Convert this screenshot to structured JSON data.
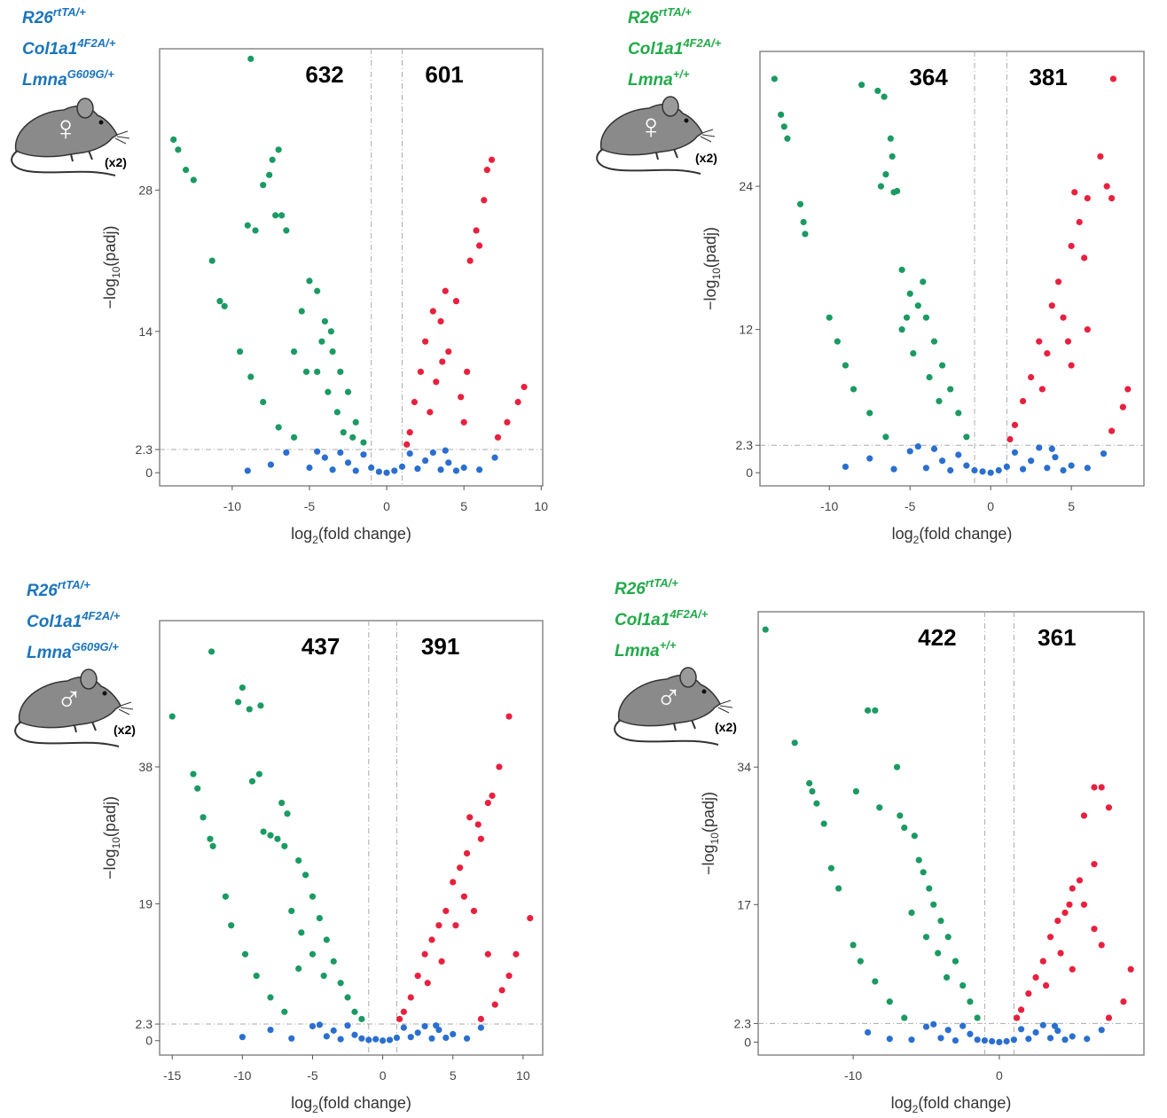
{
  "chart_data": [
    {
      "type": "scatter",
      "genotype": [
        {
          "gene": "R26",
          "allele": "rtTA/+"
        },
        {
          "gene": "Col1a1",
          "allele": "4F2A/+"
        },
        {
          "gene": "Lmna",
          "allele": "G609G/+"
        }
      ],
      "genotype_color": "#1c75bc",
      "sex": "♀",
      "replicates": "(x2)",
      "down_count": 632,
      "up_count": 601,
      "x_label": [
        "log",
        "2",
        "(fold change)"
      ],
      "y_label": [
        "−log",
        "10",
        "(padj)"
      ],
      "xlim": [
        -14.7,
        10.1
      ],
      "ylim": [
        -1.3,
        42
      ],
      "xticks": [
        -10,
        -5,
        0,
        5,
        10
      ],
      "yticks": [
        0,
        2.3,
        14,
        28
      ],
      "fc_threshold": [
        -1,
        1
      ],
      "padj_threshold": 2.3,
      "grid": false,
      "series": [
        {
          "color": "#1b9a62",
          "x": [
            -8.8,
            -13.8,
            -13.5,
            -13,
            -12.5,
            -7,
            -7.4,
            -7.6,
            -8,
            -6.8,
            -7.2,
            -8.5,
            -9,
            -6.5,
            -11.3,
            -10.8,
            -10.5,
            -9.5,
            -8.8,
            -8,
            -7,
            -6,
            -5,
            -4.5,
            -5.5,
            -4,
            -3.5,
            -3,
            -2.5,
            -2,
            -1.5,
            -4.5,
            -3.8,
            -3.2,
            -2.8,
            -6,
            -5.2,
            -4.2,
            -3.6,
            -2.2
          ],
          "values": [
            41,
            33,
            32,
            30,
            29,
            32,
            31,
            29.5,
            28.5,
            25.5,
            25.5,
            24,
            24.5,
            24,
            21,
            17,
            16.5,
            12,
            9.5,
            7,
            4.5,
            3.5,
            19,
            18,
            16,
            15,
            12,
            10,
            8,
            5,
            3,
            10,
            8,
            6,
            4,
            12,
            10,
            13,
            14,
            3.5
          ]
        },
        {
          "color": "#e8203e",
          "x": [
            6.8,
            6.5,
            6.3,
            5.8,
            6,
            5.4,
            3.8,
            4.5,
            3,
            3.5,
            2.5,
            4,
            2.2,
            5.2,
            3.2,
            1.8,
            4.8,
            2.8,
            1.5,
            1.3,
            5,
            8.9,
            8.5,
            7.8,
            7.2,
            3.6
          ],
          "values": [
            31,
            30,
            27,
            24,
            22.5,
            21,
            18,
            17,
            16,
            15,
            13,
            12,
            10,
            10,
            9,
            7,
            7.5,
            6,
            4,
            2.8,
            5,
            8.5,
            7,
            5,
            3.5,
            11
          ]
        },
        {
          "color": "#2a6fcf",
          "x": [
            -6.5,
            -5,
            -4,
            -3.5,
            -3,
            -2.5,
            -2,
            -1.5,
            -1,
            -0.5,
            0,
            0.5,
            1,
            1.5,
            2,
            2.5,
            3,
            3.5,
            4,
            4.5,
            5,
            6,
            7,
            -7.5,
            -9,
            -4.5,
            3.8
          ],
          "values": [
            2,
            0.5,
            1.5,
            0.3,
            2,
            1,
            0.2,
            1.8,
            0.5,
            0.1,
            0,
            0.2,
            0.6,
            1.9,
            0.4,
            1.2,
            2,
            0.3,
            1,
            0.2,
            0.5,
            0.3,
            1.5,
            0.8,
            0.2,
            2.1,
            2.2
          ]
        }
      ]
    },
    {
      "type": "scatter",
      "genotype": [
        {
          "gene": "R26",
          "allele": "rtTA/+"
        },
        {
          "gene": "Col1a1",
          "allele": "4F2A/+"
        },
        {
          "gene": "Lmna",
          "allele": "+/+"
        }
      ],
      "genotype_color": "#22aa4a",
      "sex": "♀",
      "replicates": "(x2)",
      "down_count": 364,
      "up_count": 381,
      "x_label": [
        "log",
        "2",
        "(fold change)"
      ],
      "y_label": [
        "−log",
        "10",
        "(padj)"
      ],
      "xlim": [
        -14.3,
        9.5
      ],
      "ylim": [
        -1.1,
        35.3
      ],
      "xticks": [
        -10,
        -5,
        0,
        5
      ],
      "yticks": [
        0,
        2.3,
        12,
        24
      ],
      "fc_threshold": [
        -1,
        1
      ],
      "padj_threshold": 2.3,
      "grid": false,
      "series": [
        {
          "color": "#1b9a62",
          "x": [
            -13.4,
            -13,
            -12.8,
            -12.6,
            -11.8,
            -11.6,
            -11.5,
            -8,
            -7,
            -6.6,
            -6.2,
            -6.1,
            -6.5,
            -6.8,
            -6,
            -5.8,
            -5.5,
            -5,
            -4.5,
            -4,
            -3.5,
            -3,
            -2.5,
            -2,
            -1.5,
            -10,
            -9.5,
            -9,
            -8.5,
            -7.5,
            -6.5,
            -5.5,
            -4.8,
            -3.8,
            -3.2,
            -4.2,
            -5.2
          ],
          "values": [
            33,
            30,
            29,
            28,
            22.5,
            21,
            20,
            32.5,
            32,
            31.5,
            28,
            26.5,
            25,
            24,
            23.5,
            23.6,
            17,
            15,
            14,
            13,
            11,
            9,
            7,
            5,
            3,
            13,
            11,
            9,
            7,
            5,
            3,
            12,
            10,
            8,
            6,
            16,
            13
          ]
        },
        {
          "color": "#e8203e",
          "x": [
            7.6,
            6.8,
            7.2,
            7.5,
            6,
            5.2,
            5.5,
            5,
            5.8,
            4.2,
            3.8,
            4.5,
            3,
            3.5,
            2.5,
            2,
            1.5,
            1.2,
            4.8,
            3.2,
            8.5,
            8.2,
            7.5,
            6,
            5
          ],
          "values": [
            33,
            26.5,
            24,
            23,
            23,
            23.5,
            21,
            19,
            18,
            16,
            14,
            13,
            11,
            10,
            8,
            6,
            4,
            2.8,
            11,
            7,
            7,
            5.5,
            3.5,
            12,
            9
          ]
        },
        {
          "color": "#2a6fcf",
          "x": [
            -9,
            -7.5,
            -6,
            -5,
            -4,
            -3.5,
            -3,
            -2.5,
            -2,
            -1.5,
            -1,
            -0.5,
            0,
            0.5,
            1,
            1.5,
            2,
            2.5,
            3,
            3.5,
            4,
            4.5,
            5,
            6,
            7,
            -4.5,
            3.8
          ],
          "values": [
            0.5,
            1.2,
            0.3,
            1.8,
            0.4,
            2,
            1,
            0.2,
            1.5,
            0.6,
            0.2,
            0.1,
            0,
            0.2,
            0.5,
            1.7,
            0.3,
            1,
            2.1,
            0.4,
            1.3,
            0.2,
            0.6,
            0.4,
            1.6,
            2.2,
            2
          ]
        }
      ]
    },
    {
      "type": "scatter",
      "genotype": [
        {
          "gene": "R26",
          "allele": "rtTA/+"
        },
        {
          "gene": "Col1a1",
          "allele": "4F2A/+"
        },
        {
          "gene": "Lmna",
          "allele": "G609G/+"
        }
      ],
      "genotype_color": "#1c75bc",
      "sex": "♂",
      "replicates": "(x2)",
      "down_count": 437,
      "up_count": 391,
      "x_label": [
        "log",
        "2",
        "(fold change)"
      ],
      "y_label": [
        "−log",
        "10",
        "(padj)"
      ],
      "xlim": [
        -15.9,
        11.4
      ],
      "ylim": [
        -2,
        58.3
      ],
      "xticks": [
        -15,
        -10,
        -5,
        0,
        5,
        10
      ],
      "yticks": [
        0,
        2.3,
        19,
        38
      ],
      "fc_threshold": [
        -1,
        1
      ],
      "padj_threshold": 2.3,
      "grid": false,
      "series": [
        {
          "color": "#1b9a62",
          "x": [
            -12.2,
            -15,
            -10,
            -9.5,
            -10.3,
            -8.7,
            -13.5,
            -13.2,
            -12.8,
            -12.3,
            -12.1,
            -11.2,
            -10.8,
            -9.8,
            -9,
            -8,
            -7,
            -9.3,
            -8.8,
            -7.2,
            -6.8,
            -8.5,
            -8,
            -7.5,
            -7,
            -6,
            -5.5,
            -5,
            -4.5,
            -4,
            -3.5,
            -3,
            -2.5,
            -2,
            -1.5,
            -6.5,
            -5.8,
            -5,
            -4.2,
            -6
          ],
          "values": [
            54,
            45,
            49,
            46,
            47,
            46.5,
            37,
            35,
            31,
            28,
            27,
            20,
            16,
            12,
            9,
            6,
            4,
            36,
            37,
            33,
            31.5,
            29,
            28.5,
            28,
            27,
            25,
            23,
            20,
            17,
            14,
            11,
            8,
            6,
            4,
            3,
            18,
            15,
            12,
            9,
            10
          ]
        },
        {
          "color": "#e8203e",
          "x": [
            9,
            8.3,
            7.8,
            7.5,
            6.2,
            6.8,
            7,
            6,
            5.5,
            5,
            5.8,
            4.5,
            4,
            3.5,
            3,
            2.5,
            2,
            1.5,
            1.2,
            6.5,
            5.2,
            7.5,
            10.5,
            9.5,
            9,
            8.5,
            8,
            7,
            4.2,
            3.2
          ],
          "values": [
            45,
            38,
            34,
            33,
            31,
            30,
            28,
            26,
            24,
            22,
            20,
            18,
            16,
            14,
            12,
            9,
            6,
            4,
            3,
            18,
            16,
            12,
            17,
            12,
            9,
            7,
            5,
            3,
            11,
            8
          ]
        },
        {
          "color": "#2a6fcf",
          "x": [
            -10,
            -8,
            -6.5,
            -5,
            -4,
            -3.5,
            -3,
            -2.5,
            -2,
            -1.5,
            -1,
            -0.5,
            0,
            0.5,
            1,
            1.5,
            2,
            2.5,
            3,
            3.5,
            4,
            4.5,
            5,
            6,
            7,
            -4.5,
            3.8
          ],
          "values": [
            0.5,
            1.5,
            0.3,
            2,
            0.6,
            1.4,
            0.2,
            2.1,
            0.8,
            0.3,
            0.1,
            0.2,
            0,
            0.1,
            0.4,
            1.8,
            0.5,
            1.1,
            2,
            0.3,
            1.5,
            0.4,
            0.9,
            0.3,
            1.8,
            2.2,
            2.1
          ]
        }
      ]
    },
    {
      "type": "scatter",
      "genotype": [
        {
          "gene": "R26",
          "allele": "rtTA/+"
        },
        {
          "gene": "Col1a1",
          "allele": "4F2A/+"
        },
        {
          "gene": "Lmna",
          "allele": "+/+"
        }
      ],
      "genotype_color": "#22aa4a",
      "sex": "♂",
      "replicates": "(x2)",
      "down_count": 422,
      "up_count": 361,
      "x_label": [
        "log",
        "2",
        "(fold change)"
      ],
      "y_label": [
        "−log",
        "10",
        "(padj)"
      ],
      "xlim": [
        -16.5,
        9.9
      ],
      "ylim": [
        -1.6,
        53.2
      ],
      "xticks": [
        -10,
        0
      ],
      "yticks": [
        0,
        2.3,
        17,
        34
      ],
      "fc_threshold": [
        -1,
        1
      ],
      "padj_threshold": 2.3,
      "grid": false,
      "series": [
        {
          "color": "#1b9a62",
          "x": [
            -16,
            -9,
            -8.5,
            -14,
            -13,
            -12.8,
            -12.5,
            -12,
            -11.5,
            -11,
            -9.8,
            -8.2,
            -7,
            -6.8,
            -6.5,
            -5.8,
            -5.5,
            -5.2,
            -4.8,
            -4.5,
            -4,
            -3.5,
            -3,
            -2.5,
            -2,
            -1.5,
            -10,
            -9.5,
            -8.5,
            -7.5,
            -6.5,
            -6,
            -5,
            -4.2,
            -3.6
          ],
          "values": [
            51,
            41,
            41,
            37,
            32,
            31,
            29.5,
            27,
            21.5,
            19,
            31,
            29,
            34,
            28,
            26.5,
            25.5,
            22.5,
            21,
            19,
            17,
            15,
            13,
            10,
            7,
            5,
            3,
            12,
            10,
            7.5,
            5,
            3,
            16,
            13,
            11,
            8
          ]
        },
        {
          "color": "#e8203e",
          "x": [
            6.5,
            7,
            5.8,
            7.5,
            6.5,
            5.5,
            5,
            4.8,
            4.5,
            4,
            3.5,
            3,
            2.5,
            2,
            1.5,
            1.2,
            5.8,
            6.5,
            4.2,
            3.2,
            7,
            9,
            8.5,
            7.5,
            5
          ],
          "values": [
            31.5,
            31.5,
            28,
            29,
            22,
            20,
            19,
            17,
            16,
            15,
            13,
            10,
            8,
            6,
            4,
            3,
            17,
            14,
            11,
            7,
            12,
            9,
            5,
            3,
            9
          ]
        },
        {
          "color": "#2a6fcf",
          "x": [
            -9,
            -7.5,
            -6,
            -5,
            -4,
            -3.5,
            -3,
            -2.5,
            -2,
            -1.5,
            -1,
            -0.5,
            0,
            0.5,
            1,
            1.5,
            2,
            2.5,
            3,
            3.5,
            4,
            4.5,
            5,
            6,
            7,
            -4.5,
            3.8
          ],
          "values": [
            1.2,
            0.4,
            0.3,
            1.9,
            0.5,
            1.5,
            0.2,
            2,
            1,
            0.3,
            0.2,
            0.1,
            0,
            0.1,
            0.3,
            1.6,
            0.4,
            1.2,
            2.1,
            0.5,
            1.4,
            0.3,
            0.7,
            0.4,
            1.5,
            2.2,
            2
          ]
        }
      ]
    }
  ]
}
